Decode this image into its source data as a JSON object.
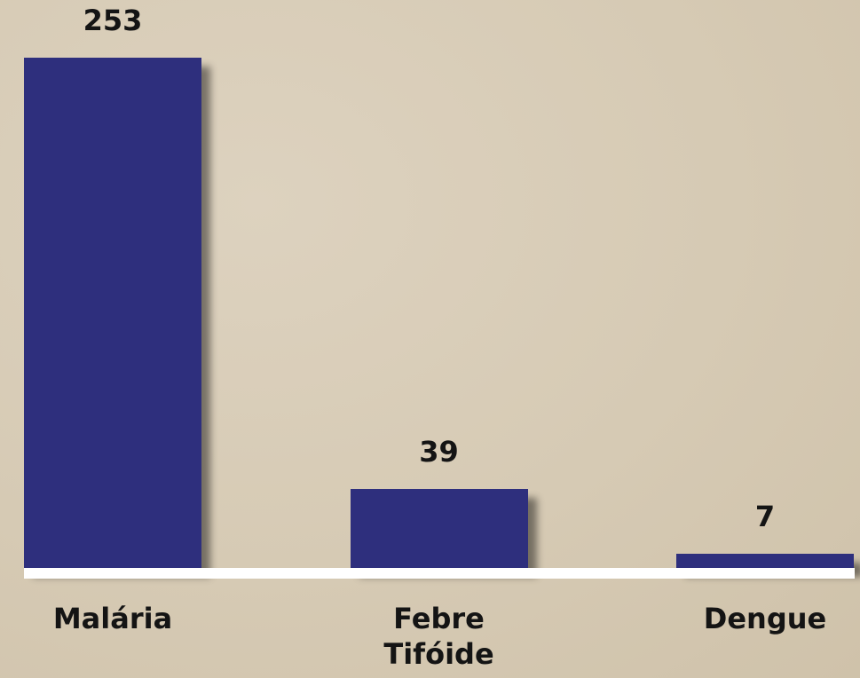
{
  "chart_data": {
    "type": "bar",
    "categories": [
      "Malária",
      "Febre Tifóide",
      "Dengue"
    ],
    "values": [
      253,
      39,
      7
    ],
    "color": "#2e2f7d"
  }
}
